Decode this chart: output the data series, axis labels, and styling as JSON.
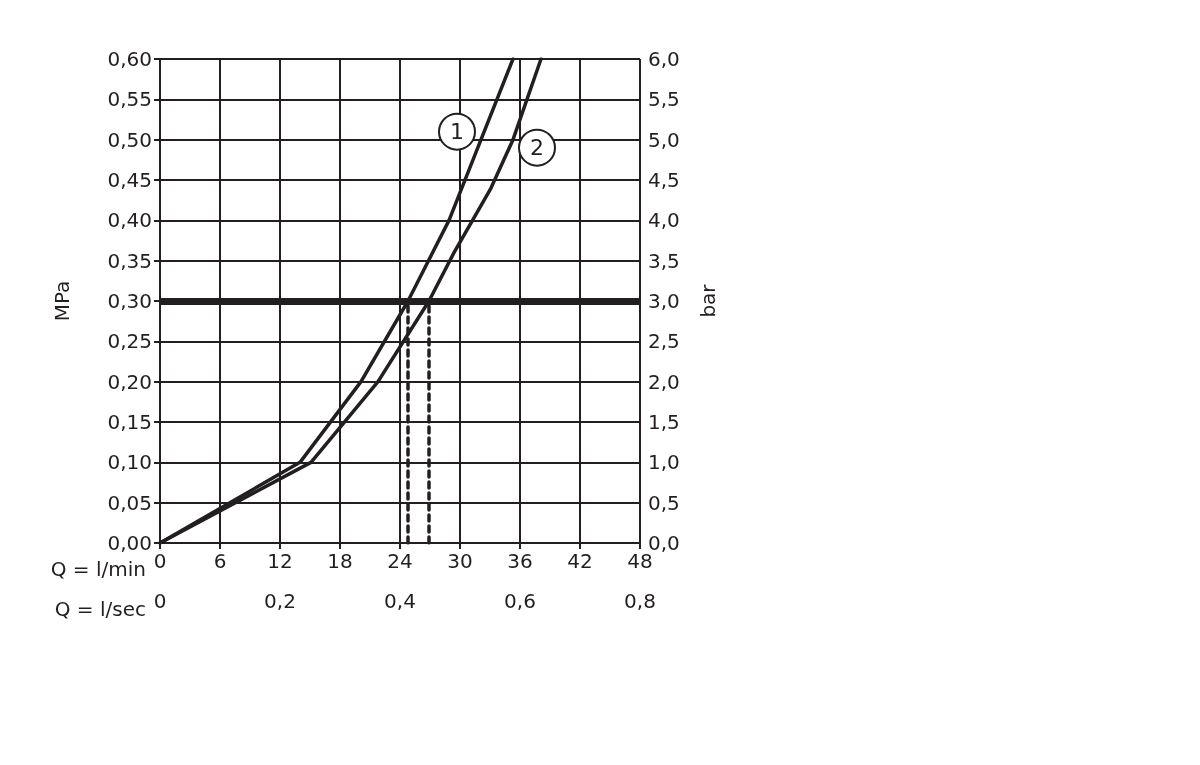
{
  "chart_data": {
    "type": "line",
    "xlabel": "Q = l/min",
    "x2label": "Q = l/sec",
    "ylabel": "MPa",
    "y2label": "bar",
    "xlim": [
      0,
      48
    ],
    "xticks": [
      0,
      6,
      12,
      18,
      24,
      30,
      36,
      42,
      48
    ],
    "x2lim": [
      0,
      0.8
    ],
    "x2ticks": [
      0,
      {
        "value": 0.2,
        "label": "0,2"
      },
      {
        "value": 0.4,
        "label": "0,4"
      },
      {
        "value": 0.6,
        "label": "0,6"
      },
      {
        "value": 0.8,
        "label": "0,8"
      }
    ],
    "ylim": [
      0,
      0.6
    ],
    "yticks": [
      {
        "value": 0,
        "label": "0,00"
      },
      {
        "value": 0.05,
        "label": "0,05"
      },
      {
        "value": 0.1,
        "label": "0,10"
      },
      {
        "value": 0.15,
        "label": "0,15"
      },
      {
        "value": 0.2,
        "label": "0,20"
      },
      {
        "value": 0.25,
        "label": "0,25"
      },
      {
        "value": 0.3,
        "label": "0,30"
      },
      {
        "value": 0.35,
        "label": "0,35"
      },
      {
        "value": 0.4,
        "label": "0,40"
      },
      {
        "value": 0.45,
        "label": "0,45"
      },
      {
        "value": 0.5,
        "label": "0,50"
      },
      {
        "value": 0.55,
        "label": "0,55"
      },
      {
        "value": 0.6,
        "label": "0,60"
      }
    ],
    "y2lim": [
      0,
      6
    ],
    "y2ticks": [
      {
        "value": 0,
        "label": "0,0"
      },
      {
        "value": 0.5,
        "label": "0,5"
      },
      {
        "value": 1,
        "label": "1,0"
      },
      {
        "value": 1.5,
        "label": "1,5"
      },
      {
        "value": 2,
        "label": "2,0"
      },
      {
        "value": 2.5,
        "label": "2,5"
      },
      {
        "value": 3,
        "label": "3,0"
      },
      {
        "value": 3.5,
        "label": "3,5"
      },
      {
        "value": 4,
        "label": "4,0"
      },
      {
        "value": 4.5,
        "label": "4,5"
      },
      {
        "value": 5,
        "label": "5,0"
      },
      {
        "value": 5.5,
        "label": "5,5"
      },
      {
        "value": 6,
        "label": "6,0"
      }
    ],
    "grid": true,
    "legend": false,
    "marker": "none",
    "line_style": "solid",
    "ref_lines": [
      {
        "axis": "y",
        "value": 0.3,
        "color": "#231f20"
      }
    ],
    "series": [
      {
        "name": "1",
        "color": "#231f20",
        "x": [
          0,
          14,
          20.1,
          24.8,
          28.9,
          32.1,
          35.3
        ],
        "values": [
          0,
          0.1,
          0.2,
          0.3,
          0.4,
          0.5,
          0.6
        ]
      },
      {
        "name": "2",
        "color": "#231f20",
        "x": [
          0,
          15.1,
          21.8,
          26.9,
          29.4,
          33.1,
          35.3,
          38.1
        ],
        "values": [
          0,
          0.1,
          0.2,
          0.3,
          0.36,
          0.44,
          0.5,
          0.6
        ]
      },
      {
        "color": "#231f20",
        "line_style": "dashed",
        "x": [
          24.8,
          24.8
        ],
        "values": [
          0,
          0.3
        ]
      },
      {
        "color": "#231f20",
        "line_style": "dashed",
        "x": [
          26.9,
          26.9
        ],
        "values": [
          0,
          0.3
        ]
      }
    ]
  }
}
